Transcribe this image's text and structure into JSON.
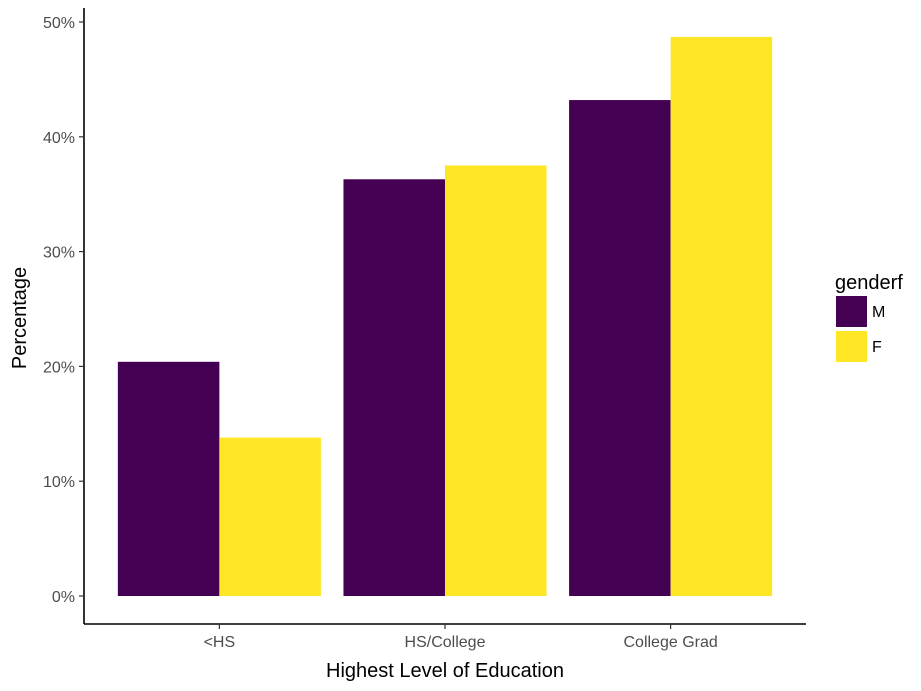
{
  "chart_data": {
    "type": "bar",
    "categories": [
      "<HS",
      "HS/College",
      "College Grad"
    ],
    "series": [
      {
        "name": "M",
        "color": "#440154",
        "values": [
          20.4,
          36.3,
          43.2
        ]
      },
      {
        "name": "F",
        "color": "#FDE725",
        "values": [
          13.8,
          37.5,
          48.7
        ]
      }
    ],
    "xlabel": "Highest Level of Education",
    "ylabel": "Percentage",
    "ylim": [
      0,
      50
    ],
    "yticks": [
      0,
      10,
      20,
      30,
      40,
      50
    ],
    "ytick_labels": [
      "0%",
      "10%",
      "20%",
      "30%",
      "40%",
      "50%"
    ],
    "legend": {
      "title": "genderf",
      "position": "right"
    },
    "grid": false
  }
}
